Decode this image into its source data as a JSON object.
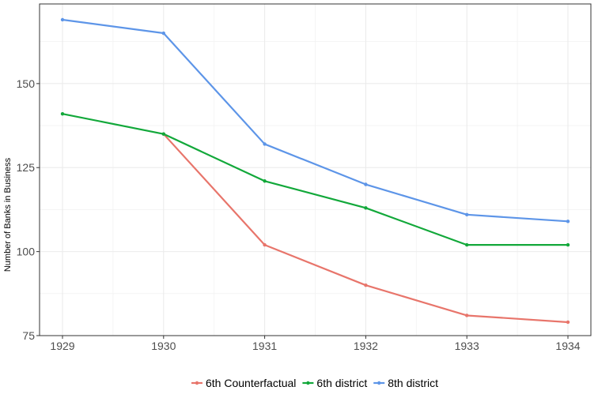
{
  "chart_data": {
    "type": "line",
    "title": "",
    "xlabel": "",
    "ylabel": "Number of Banks in Business",
    "x": [
      "1929",
      "1930",
      "1931",
      "1932",
      "1933",
      "1934"
    ],
    "ylim": [
      75,
      170
    ],
    "yticks": [
      75,
      100,
      125,
      150
    ],
    "grid": true,
    "legend_position": "bottom",
    "series": [
      {
        "name": "6th Counterfactual",
        "color": "#e8756b",
        "values": [
          null,
          135,
          102,
          90,
          81,
          79
        ]
      },
      {
        "name": "6th district",
        "color": "#12a83a",
        "values": [
          141,
          135,
          121,
          113,
          102,
          102
        ]
      },
      {
        "name": "8th district",
        "color": "#5d95e8",
        "values": [
          169,
          165,
          132,
          120,
          111,
          109
        ]
      }
    ]
  }
}
